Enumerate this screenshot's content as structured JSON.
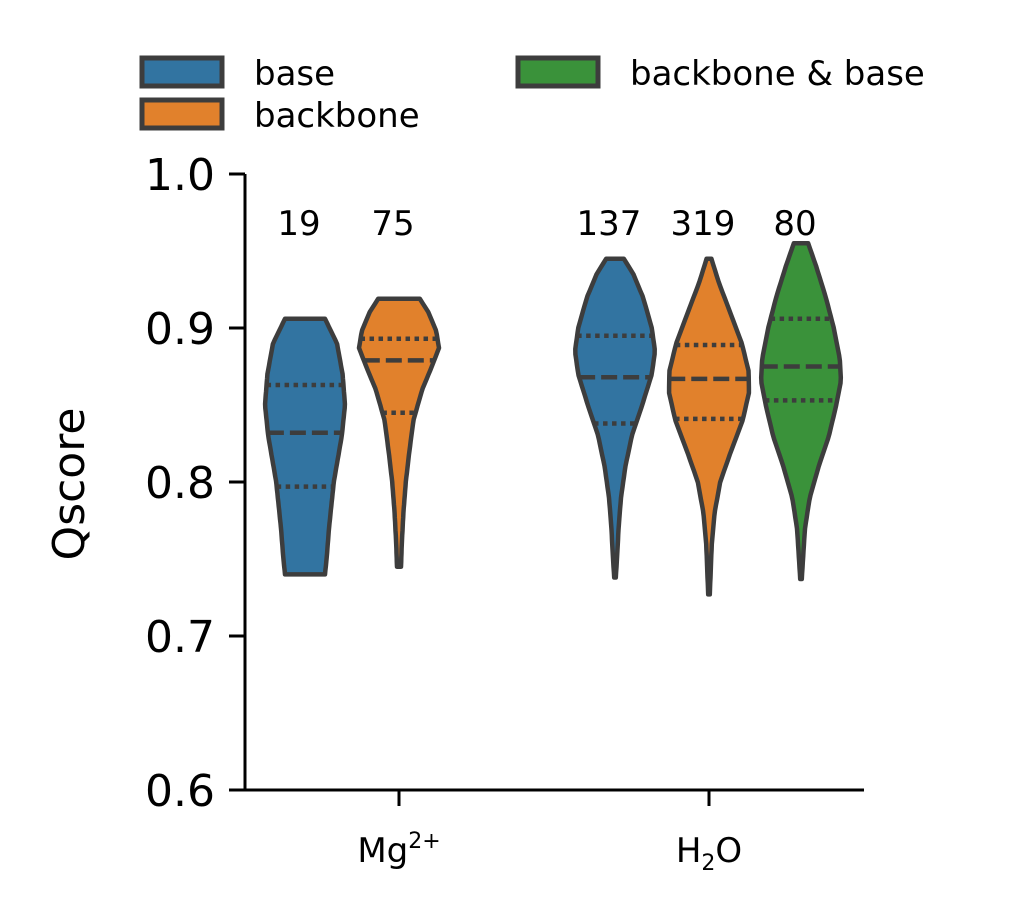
{
  "chart_data": {
    "type": "violin",
    "ylabel": "Qscore",
    "ylim": [
      0.6,
      1.0
    ],
    "yticks": [
      0.6,
      0.7,
      0.8,
      0.9,
      1.0
    ],
    "ytick_labels": [
      "0.6",
      "0.7",
      "0.8",
      "0.9",
      "1.0"
    ],
    "categories": [
      "Mg2+",
      "H2O"
    ],
    "category_labels": [
      {
        "base": "Mg",
        "sup": "2+"
      },
      {
        "base": "H",
        "sub": "2",
        "tail": "O"
      }
    ],
    "legend": {
      "placement": "top",
      "entries": [
        {
          "label": "base",
          "color": "#3274a1"
        },
        {
          "label": "backbone",
          "color": "#e1812c"
        },
        {
          "label": "backbone & base",
          "color": "#3a923a"
        }
      ]
    },
    "violins": [
      {
        "category": "Mg2+",
        "series": "base",
        "count": "19",
        "min": 0.74,
        "max": 0.906,
        "q1": 0.797,
        "median": 0.832,
        "q3": 0.863,
        "profile": [
          [
            0.74,
            0.5
          ],
          [
            0.75,
            0.54
          ],
          [
            0.77,
            0.6
          ],
          [
            0.8,
            0.72
          ],
          [
            0.83,
            0.92
          ],
          [
            0.85,
            1.0
          ],
          [
            0.87,
            0.94
          ],
          [
            0.89,
            0.8
          ],
          [
            0.906,
            0.5
          ]
        ]
      },
      {
        "category": "Mg2+",
        "series": "backbone",
        "count": "75",
        "min": 0.745,
        "max": 0.919,
        "q1": 0.845,
        "median": 0.879,
        "q3": 0.893,
        "profile": [
          [
            0.745,
            0.05
          ],
          [
            0.76,
            0.07
          ],
          [
            0.78,
            0.11
          ],
          [
            0.8,
            0.17
          ],
          [
            0.82,
            0.26
          ],
          [
            0.84,
            0.36
          ],
          [
            0.86,
            0.58
          ],
          [
            0.875,
            0.82
          ],
          [
            0.887,
            1.0
          ],
          [
            0.898,
            0.93
          ],
          [
            0.91,
            0.74
          ],
          [
            0.919,
            0.52
          ]
        ]
      },
      {
        "category": "H2O",
        "series": "base",
        "count": "137",
        "min": 0.738,
        "max": 0.945,
        "q1": 0.838,
        "median": 0.868,
        "q3": 0.895,
        "profile": [
          [
            0.738,
            0.02
          ],
          [
            0.75,
            0.05
          ],
          [
            0.77,
            0.09
          ],
          [
            0.79,
            0.15
          ],
          [
            0.81,
            0.26
          ],
          [
            0.83,
            0.42
          ],
          [
            0.85,
            0.68
          ],
          [
            0.87,
            0.92
          ],
          [
            0.885,
            1.0
          ],
          [
            0.9,
            0.92
          ],
          [
            0.92,
            0.7
          ],
          [
            0.935,
            0.46
          ],
          [
            0.945,
            0.22
          ]
        ]
      },
      {
        "category": "H2O",
        "series": "backbone",
        "count": "319",
        "min": 0.727,
        "max": 0.945,
        "q1": 0.841,
        "median": 0.867,
        "q3": 0.889,
        "profile": [
          [
            0.727,
            0.02
          ],
          [
            0.74,
            0.04
          ],
          [
            0.76,
            0.07
          ],
          [
            0.78,
            0.14
          ],
          [
            0.8,
            0.28
          ],
          [
            0.82,
            0.55
          ],
          [
            0.84,
            0.84
          ],
          [
            0.858,
            1.0
          ],
          [
            0.872,
            0.99
          ],
          [
            0.89,
            0.82
          ],
          [
            0.91,
            0.53
          ],
          [
            0.93,
            0.24
          ],
          [
            0.945,
            0.06
          ]
        ]
      },
      {
        "category": "H2O",
        "series": "backbone & base",
        "count": "80",
        "min": 0.737,
        "max": 0.955,
        "q1": 0.853,
        "median": 0.875,
        "q3": 0.906,
        "profile": [
          [
            0.737,
            0.02
          ],
          [
            0.75,
            0.05
          ],
          [
            0.77,
            0.1
          ],
          [
            0.79,
            0.22
          ],
          [
            0.81,
            0.44
          ],
          [
            0.83,
            0.7
          ],
          [
            0.85,
            0.88
          ],
          [
            0.866,
            1.0
          ],
          [
            0.88,
            0.97
          ],
          [
            0.9,
            0.82
          ],
          [
            0.92,
            0.62
          ],
          [
            0.94,
            0.38
          ],
          [
            0.955,
            0.18
          ]
        ]
      }
    ]
  }
}
